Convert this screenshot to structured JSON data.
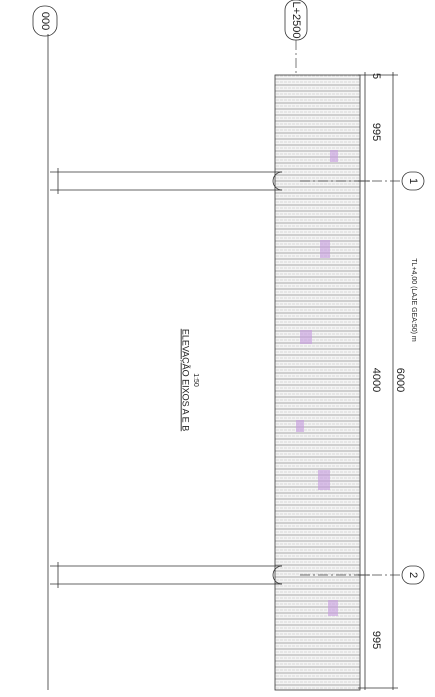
{
  "grid_bubbles": [
    "000",
    "L+2500"
  ],
  "dimensions": {
    "top_offset": "5",
    "left_span": "995",
    "middle_span": "4000",
    "right_span": "995",
    "total": "6000"
  },
  "axis_markers": [
    "1",
    "2"
  ],
  "title": "ELEVAÇÃO EIXOS A E B",
  "scale": "1:50",
  "note": "TL+4,00 (LAJE GEA:50) m"
}
